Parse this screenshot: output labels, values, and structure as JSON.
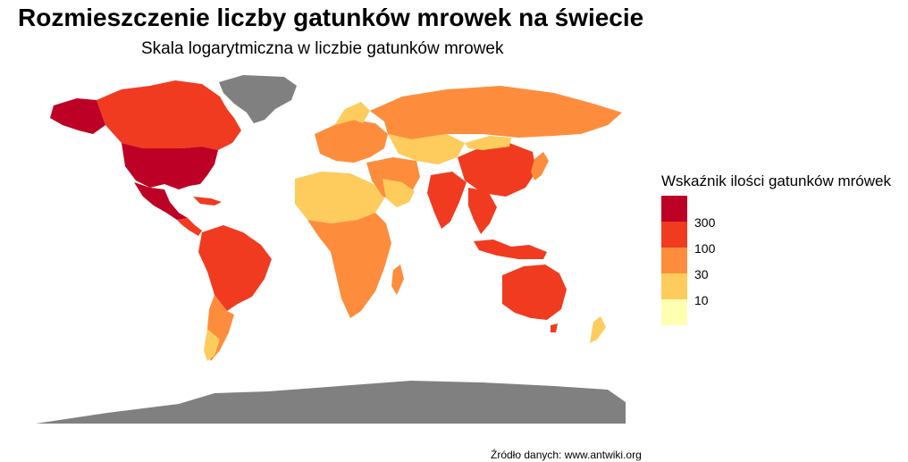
{
  "title": "Rozmieszczenie liczby gatunków mrowek na świecie",
  "subtitle": "Skala logarytmiczna w liczbie gatunków mrowek",
  "caption": "Źródło danych: www.antwiki.org",
  "legend": {
    "title": "Wskaźnik ilości gatunków mrówek",
    "labels": [
      "300",
      "100",
      "30",
      "10"
    ],
    "colors": [
      "#bd0026",
      "#f03b20",
      "#fd8d3c",
      "#fecc5c",
      "#ffffb2"
    ]
  },
  "colors": {
    "no_data": "#808080",
    "very_high": "#bd0026",
    "high": "#f03b20",
    "medium": "#fd8d3c",
    "low": "#fecc5c",
    "very_low": "#ffffb2"
  }
}
